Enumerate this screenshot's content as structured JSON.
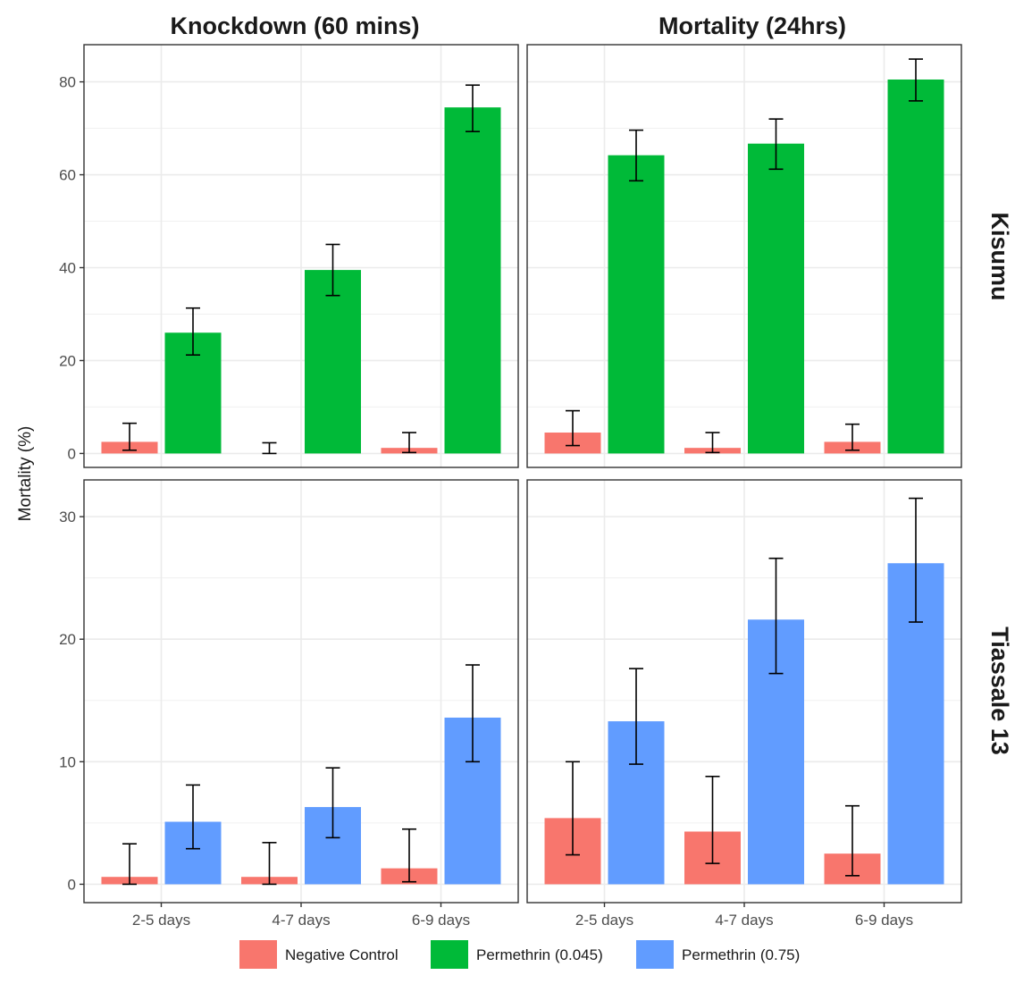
{
  "chart_data": {
    "type": "bar",
    "ylabel": "Mortality (%)",
    "categories": [
      "2-5 days",
      "4-7 days",
      "6-9 days"
    ],
    "columns": [
      "Knockdown (60 mins)",
      "Mortality (24hrs)"
    ],
    "rows": [
      "Kisumu",
      "Tiassale 13"
    ],
    "legend": {
      "position": "bottom",
      "entries": [
        {
          "name": "Negative Control",
          "color": "#F8766D"
        },
        {
          "name": "Permethrin (0.045)",
          "color": "#00BA38"
        },
        {
          "name": "Permethrin (0.75)",
          "color": "#619CFF"
        }
      ]
    },
    "grid": true,
    "panels": [
      {
        "row": "Kisumu",
        "column": "Knockdown (60 mins)",
        "ylim": [
          -3,
          88
        ],
        "yticks": [
          0,
          20,
          40,
          60,
          80
        ],
        "series": [
          {
            "name": "Negative Control",
            "values": [
              2.5,
              0,
              1.2
            ],
            "ci_low": [
              0.7,
              0,
              0.2
            ],
            "ci_high": [
              6.5,
              2.3,
              4.5
            ]
          },
          {
            "name": "Permethrin (0.045)",
            "values": [
              26,
              39.5,
              74.5
            ],
            "ci_low": [
              21.2,
              34,
              69.3
            ],
            "ci_high": [
              31.3,
              45,
              79.3
            ]
          }
        ]
      },
      {
        "row": "Kisumu",
        "column": "Mortality (24hrs)",
        "ylim": [
          -3,
          88
        ],
        "yticks": [
          0,
          20,
          40,
          60,
          80
        ],
        "series": [
          {
            "name": "Negative Control",
            "values": [
              4.5,
              1.2,
              2.5
            ],
            "ci_low": [
              1.7,
              0.2,
              0.7
            ],
            "ci_high": [
              9.2,
              4.5,
              6.3
            ]
          },
          {
            "name": "Permethrin (0.045)",
            "values": [
              64.2,
              66.7,
              80.5
            ],
            "ci_low": [
              58.7,
              61.2,
              75.9
            ],
            "ci_high": [
              69.6,
              72,
              84.9
            ]
          }
        ]
      },
      {
        "row": "Tiassale 13",
        "column": "Knockdown (60 mins)",
        "ylim": [
          -1.5,
          33
        ],
        "yticks": [
          0,
          10,
          20,
          30
        ],
        "series": [
          {
            "name": "Negative Control",
            "values": [
              0.6,
              0.6,
              1.3
            ],
            "ci_low": [
              0,
              0,
              0.2
            ],
            "ci_high": [
              3.3,
              3.4,
              4.5
            ]
          },
          {
            "name": "Permethrin (0.75)",
            "values": [
              5.1,
              6.3,
              13.6
            ],
            "ci_low": [
              2.9,
              3.8,
              10
            ],
            "ci_high": [
              8.1,
              9.5,
              17.9
            ]
          }
        ]
      },
      {
        "row": "Tiassale 13",
        "column": "Mortality (24hrs)",
        "ylim": [
          -1.5,
          33
        ],
        "yticks": [
          0,
          10,
          20,
          30
        ],
        "series": [
          {
            "name": "Negative Control",
            "values": [
              5.4,
              4.3,
              2.5
            ],
            "ci_low": [
              2.4,
              1.7,
              0.7
            ],
            "ci_high": [
              10,
              8.8,
              6.4
            ]
          },
          {
            "name": "Permethrin (0.75)",
            "values": [
              13.3,
              21.6,
              26.2
            ],
            "ci_low": [
              9.8,
              17.2,
              21.4
            ],
            "ci_high": [
              17.6,
              26.6,
              31.5
            ]
          }
        ]
      }
    ]
  }
}
